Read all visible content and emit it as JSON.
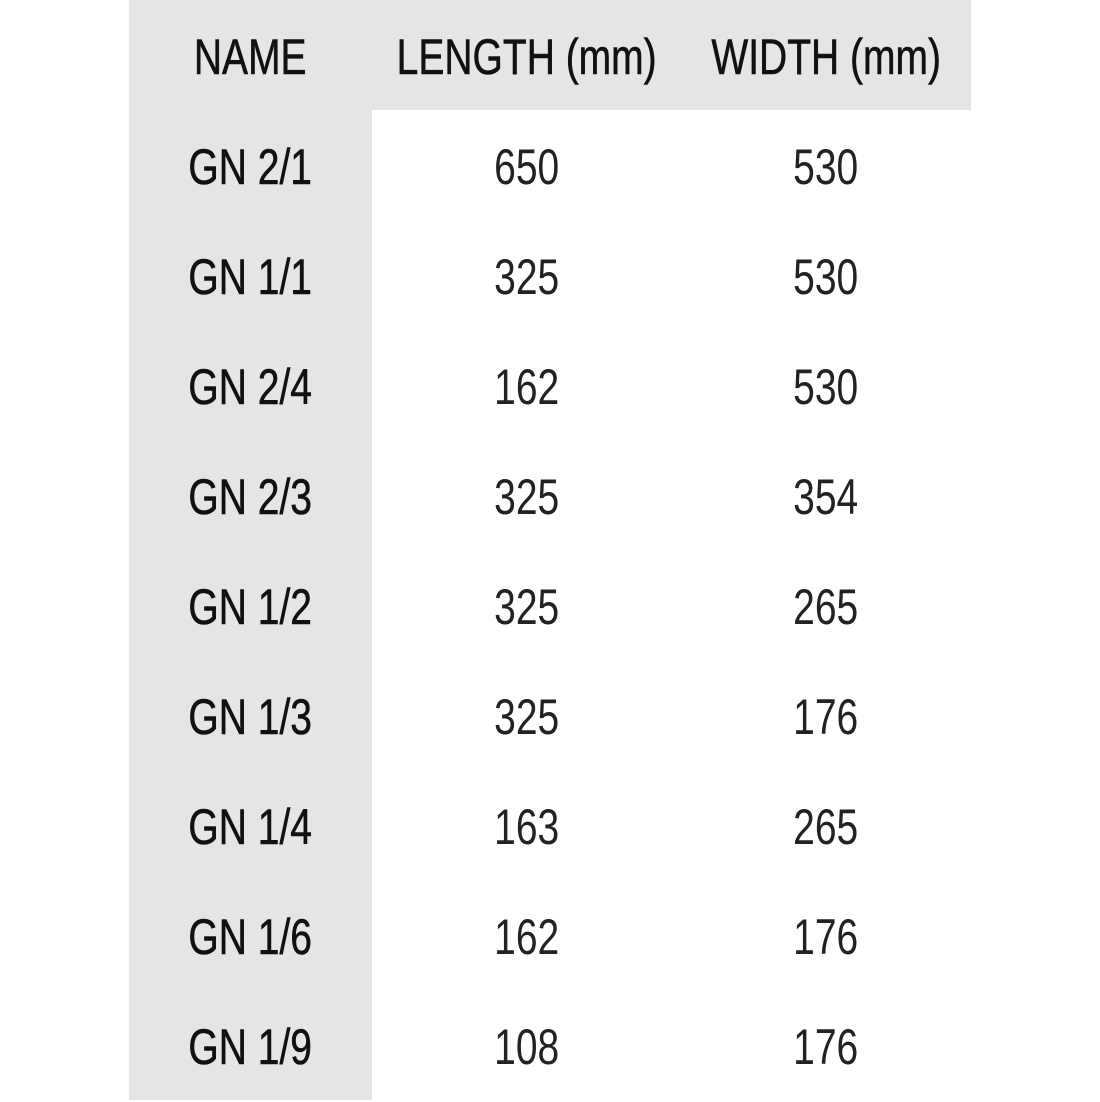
{
  "table": {
    "headers": [
      "NAME",
      "LENGTH (mm)",
      "WIDTH (mm)"
    ],
    "rows": [
      [
        "GN 2/1",
        "650",
        "530"
      ],
      [
        "GN 1/1",
        "325",
        "530"
      ],
      [
        "GN 2/4",
        "162",
        "530"
      ],
      [
        "GN 2/3",
        "325",
        "354"
      ],
      [
        "GN 1/2",
        "325",
        "265"
      ],
      [
        "GN 1/3",
        "325",
        "176"
      ],
      [
        "GN 1/4",
        "163",
        "265"
      ],
      [
        "GN 1/6",
        "162",
        "176"
      ],
      [
        "GN 1/9",
        "108",
        "176"
      ]
    ]
  },
  "colors": {
    "shade": "#e6e5e4",
    "text": "#111111"
  }
}
